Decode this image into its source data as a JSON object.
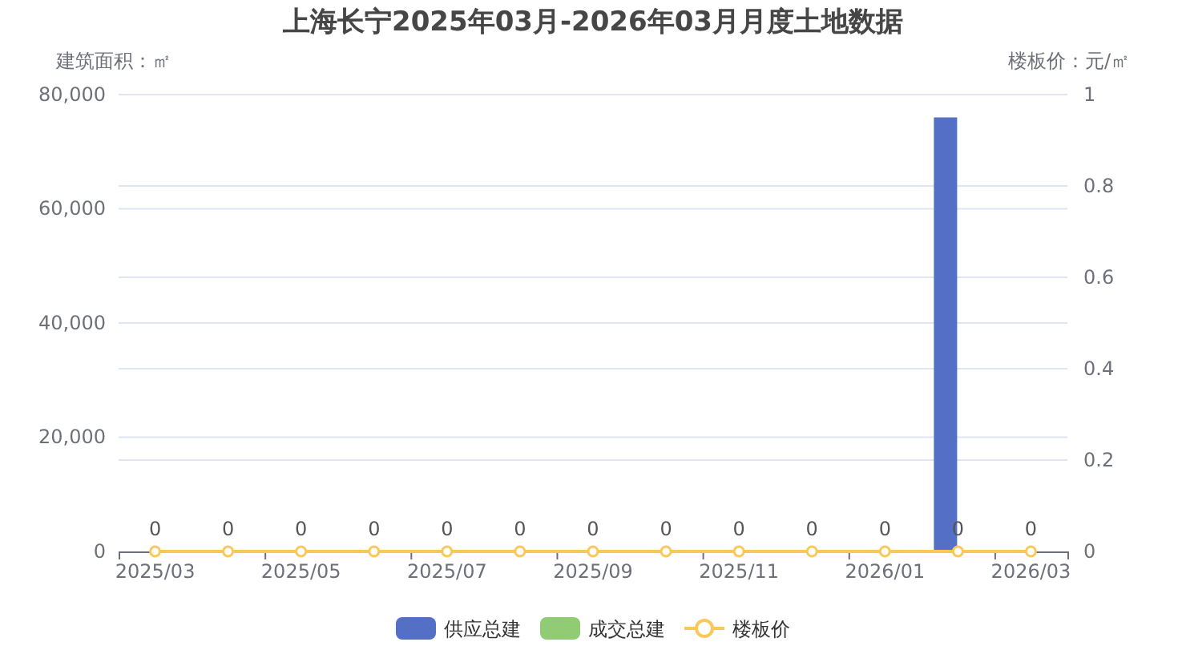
{
  "chart_data": {
    "type": "bar",
    "title": "上海长宁2025年03月-2026年03月月度土地数据",
    "ylabel": "建筑面积：㎡",
    "y2label": "楼板价：元/㎡",
    "categories": [
      "2025/03",
      null,
      "2025/05",
      null,
      "2025/07",
      null,
      "2025/09",
      null,
      "2025/11",
      null,
      "2026/01",
      null,
      "2026/03"
    ],
    "series": [
      {
        "name": "供应总建",
        "color": "#5470c6",
        "values": [
          0,
          0,
          0,
          0,
          0,
          0,
          0,
          0,
          0,
          0,
          0,
          76000,
          0
        ]
      },
      {
        "name": "成交总建",
        "color": "#91cc75",
        "values": [
          0,
          0,
          0,
          0,
          0,
          0,
          0,
          0,
          0,
          0,
          0,
          0,
          0
        ]
      },
      {
        "name": "楼板价",
        "type": "line",
        "axis": "y2",
        "color": "#fac858",
        "values": [
          0,
          0,
          0,
          0,
          0,
          0,
          0,
          0,
          0,
          0,
          0,
          0,
          0
        ],
        "value_labels": [
          "0",
          "0",
          "0",
          "0",
          "0",
          "0",
          "0",
          "0",
          "0",
          "0",
          "0",
          "0",
          "0"
        ]
      }
    ],
    "ylim": [
      0,
      80000
    ],
    "yticks": [
      0,
      {
        "value": 20000,
        "label": "20,000"
      },
      {
        "value": 40000,
        "label": "40,000"
      },
      {
        "value": 60000,
        "label": "60,000"
      },
      {
        "value": 80000,
        "label": "80,000"
      }
    ],
    "y2lim": [
      0,
      1
    ],
    "y2ticks": [
      0,
      0.2,
      0.4,
      0.6,
      0.8,
      1
    ],
    "grid": "y",
    "legend": "bottom",
    "marker": "circle",
    "line_style": "solid"
  }
}
